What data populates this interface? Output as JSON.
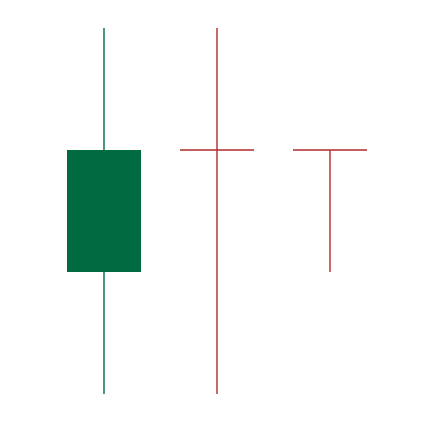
{
  "chart_data": {
    "type": "candlestick",
    "title": "",
    "xlabel": "",
    "ylabel": "",
    "axes_visible": false,
    "grid": false,
    "legend": "none",
    "ylim": [
      0,
      30
    ],
    "candles": [
      {
        "open": 10,
        "high": 30,
        "low": 0,
        "close": 20
      },
      {
        "open": 20,
        "high": 30,
        "low": 0,
        "close": 20
      },
      {
        "open": 20,
        "high": 20,
        "low": 10,
        "close": 20
      }
    ],
    "colors": {
      "up": "#006b40",
      "doji": "#b02a2a",
      "background": "#ffffff"
    }
  }
}
